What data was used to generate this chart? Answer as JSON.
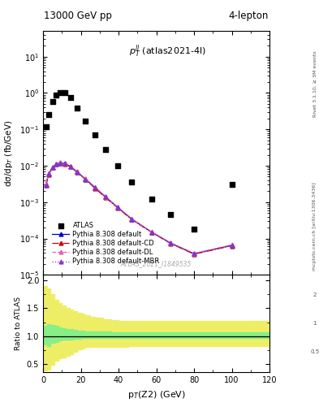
{
  "title_left": "13000 GeV pp",
  "title_right": "4-lepton",
  "annotation": "$p_T^{ll}$ (atlas2021-4l)",
  "watermark": "ATLAS_2021_I1849535",
  "ylabel_main": "dσ/dp$_T$ (fb/GeV)",
  "ylabel_ratio": "Ratio to ATLAS",
  "xlabel": "p$_T$(Z2) (GeV)",
  "right_label_top": "Rivet 3.1.10, ≥ 3M events",
  "right_label_mid": "mcplots.cern.ch [arXiv:1306.3436]",
  "ylim_main": [
    1e-05,
    50
  ],
  "ylim_ratio": [
    0.35,
    2.1
  ],
  "xlim": [
    0,
    120
  ],
  "atlas_x": [
    1.5,
    3.0,
    5.0,
    7.0,
    9.0,
    11.5,
    14.5,
    18.0,
    22.5,
    27.5,
    33.0,
    39.5,
    47.0,
    57.5,
    67.5,
    80.0,
    100.0
  ],
  "atlas_y": [
    0.12,
    0.25,
    0.58,
    0.88,
    1.05,
    1.05,
    0.75,
    0.38,
    0.17,
    0.07,
    0.028,
    0.01,
    0.0035,
    0.0012,
    0.00045,
    0.00018,
    0.003
  ],
  "pythia_x": [
    1.5,
    3.0,
    5.0,
    7.0,
    9.0,
    11.5,
    14.5,
    18.0,
    22.5,
    27.5,
    33.0,
    39.5,
    47.0,
    57.5,
    67.5,
    80.0,
    100.0
  ],
  "pythia_default_y": [
    0.003,
    0.006,
    0.009,
    0.011,
    0.012,
    0.0115,
    0.0095,
    0.0068,
    0.0043,
    0.0025,
    0.0014,
    0.00072,
    0.00034,
    0.00015,
    7.5e-05,
    3.8e-05,
    6.5e-05
  ],
  "pythia_cd_y": [
    0.0029,
    0.0058,
    0.0088,
    0.0108,
    0.0118,
    0.0113,
    0.0093,
    0.0066,
    0.0042,
    0.0024,
    0.00135,
    0.0007,
    0.00033,
    0.000148,
    7.3e-05,
    3.7e-05,
    6.3e-05
  ],
  "pythia_dl_y": [
    0.0031,
    0.0062,
    0.0092,
    0.0113,
    0.0123,
    0.0118,
    0.0097,
    0.007,
    0.0044,
    0.0026,
    0.00145,
    0.00074,
    0.00035,
    0.000152,
    7.7e-05,
    3.9e-05,
    6.7e-05
  ],
  "pythia_mbr_y": [
    0.0029,
    0.0059,
    0.0089,
    0.0109,
    0.0119,
    0.0114,
    0.0094,
    0.0067,
    0.0042,
    0.0025,
    0.00138,
    0.00071,
    0.00034,
    0.000149,
    7.4e-05,
    3.8e-05,
    6.4e-05
  ],
  "ratio_x": [
    0,
    2,
    4,
    6,
    8,
    10,
    12,
    14,
    16,
    18,
    20,
    22,
    25,
    28,
    32,
    36,
    40,
    45,
    50,
    55,
    60,
    70,
    80,
    90,
    110,
    120
  ],
  "ratio_green_lo": [
    0.85,
    0.82,
    0.88,
    0.9,
    0.92,
    0.93,
    0.94,
    0.94,
    0.95,
    0.95,
    0.96,
    0.96,
    0.96,
    0.96,
    0.96,
    0.97,
    0.97,
    0.97,
    0.97,
    0.97,
    0.97,
    0.97,
    0.97,
    0.97,
    0.97,
    0.97
  ],
  "ratio_green_hi": [
    1.18,
    1.22,
    1.2,
    1.18,
    1.16,
    1.14,
    1.13,
    1.12,
    1.11,
    1.1,
    1.1,
    1.09,
    1.09,
    1.08,
    1.08,
    1.07,
    1.07,
    1.07,
    1.07,
    1.07,
    1.07,
    1.07,
    1.07,
    1.07,
    1.07,
    1.07
  ],
  "ratio_yellow_lo": [
    0.38,
    0.4,
    0.48,
    0.56,
    0.6,
    0.62,
    0.65,
    0.68,
    0.72,
    0.76,
    0.78,
    0.8,
    0.8,
    0.8,
    0.8,
    0.8,
    0.8,
    0.82,
    0.82,
    0.82,
    0.82,
    0.82,
    0.82,
    0.82,
    0.82,
    0.82
  ],
  "ratio_yellow_hi": [
    1.9,
    1.85,
    1.75,
    1.65,
    1.6,
    1.55,
    1.5,
    1.48,
    1.45,
    1.42,
    1.4,
    1.38,
    1.35,
    1.33,
    1.3,
    1.28,
    1.27,
    1.27,
    1.27,
    1.27,
    1.27,
    1.27,
    1.27,
    1.27,
    1.27,
    1.27
  ],
  "color_atlas": "#000000",
  "color_default": "#0000cc",
  "color_cd": "#cc0000",
  "color_dl": "#dd66aa",
  "color_mbr": "#8833cc",
  "color_green": "#88ee88",
  "color_yellow": "#eeee66",
  "bg_color": "#ffffff"
}
